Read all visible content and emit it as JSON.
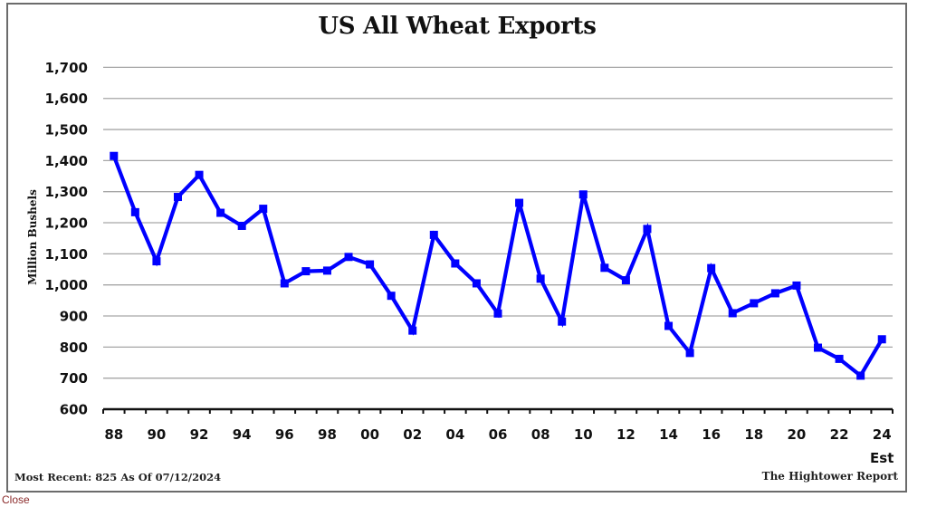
{
  "page": {
    "close_label": "Close"
  },
  "chart_data": {
    "type": "line",
    "title": "US All Wheat Exports",
    "xlabel": "",
    "ylabel": "Million Bushels",
    "ylim": [
      600,
      1700
    ],
    "yticks": [
      600,
      700,
      800,
      900,
      1000,
      1100,
      1200,
      1300,
      1400,
      1500,
      1600,
      1700
    ],
    "ytick_labels": [
      "600",
      "700",
      "800",
      "900",
      "1,000",
      "1,100",
      "1,200",
      "1,300",
      "1,400",
      "1,500",
      "1,600",
      "1,700"
    ],
    "grid": true,
    "legend": null,
    "categories": [
      "88",
      "89",
      "90",
      "91",
      "92",
      "93",
      "94",
      "95",
      "96",
      "97",
      "98",
      "99",
      "00",
      "01",
      "02",
      "03",
      "04",
      "05",
      "06",
      "07",
      "08",
      "09",
      "10",
      "11",
      "12",
      "13",
      "14",
      "15",
      "16",
      "17",
      "18",
      "19",
      "20",
      "21",
      "22",
      "23",
      "24"
    ],
    "xtick_labels": [
      "88",
      "90",
      "92",
      "94",
      "96",
      "98",
      "00",
      "02",
      "04",
      "06",
      "08",
      "10",
      "12",
      "14",
      "16",
      "18",
      "20",
      "22",
      "24"
    ],
    "xtick_sublabel": {
      "category": "24",
      "text": "Est"
    },
    "series": [
      {
        "name": "US All Wheat Exports",
        "color": "#0000ff",
        "marker": "square",
        "values": [
          1415,
          1234,
          1076,
          1283,
          1354,
          1232,
          1190,
          1245,
          1005,
          1044,
          1046,
          1090,
          1066,
          965,
          853,
          1161,
          1069,
          1005,
          908,
          1264,
          1020,
          882,
          1291,
          1055,
          1015,
          1180,
          868,
          781,
          1054,
          909,
          941,
          973,
          998,
          798,
          762,
          708,
          825
        ]
      }
    ],
    "annotations": {
      "most_recent": "Most Recent: 825 As Of 07/12/2024",
      "source": "The Hightower Report"
    }
  }
}
